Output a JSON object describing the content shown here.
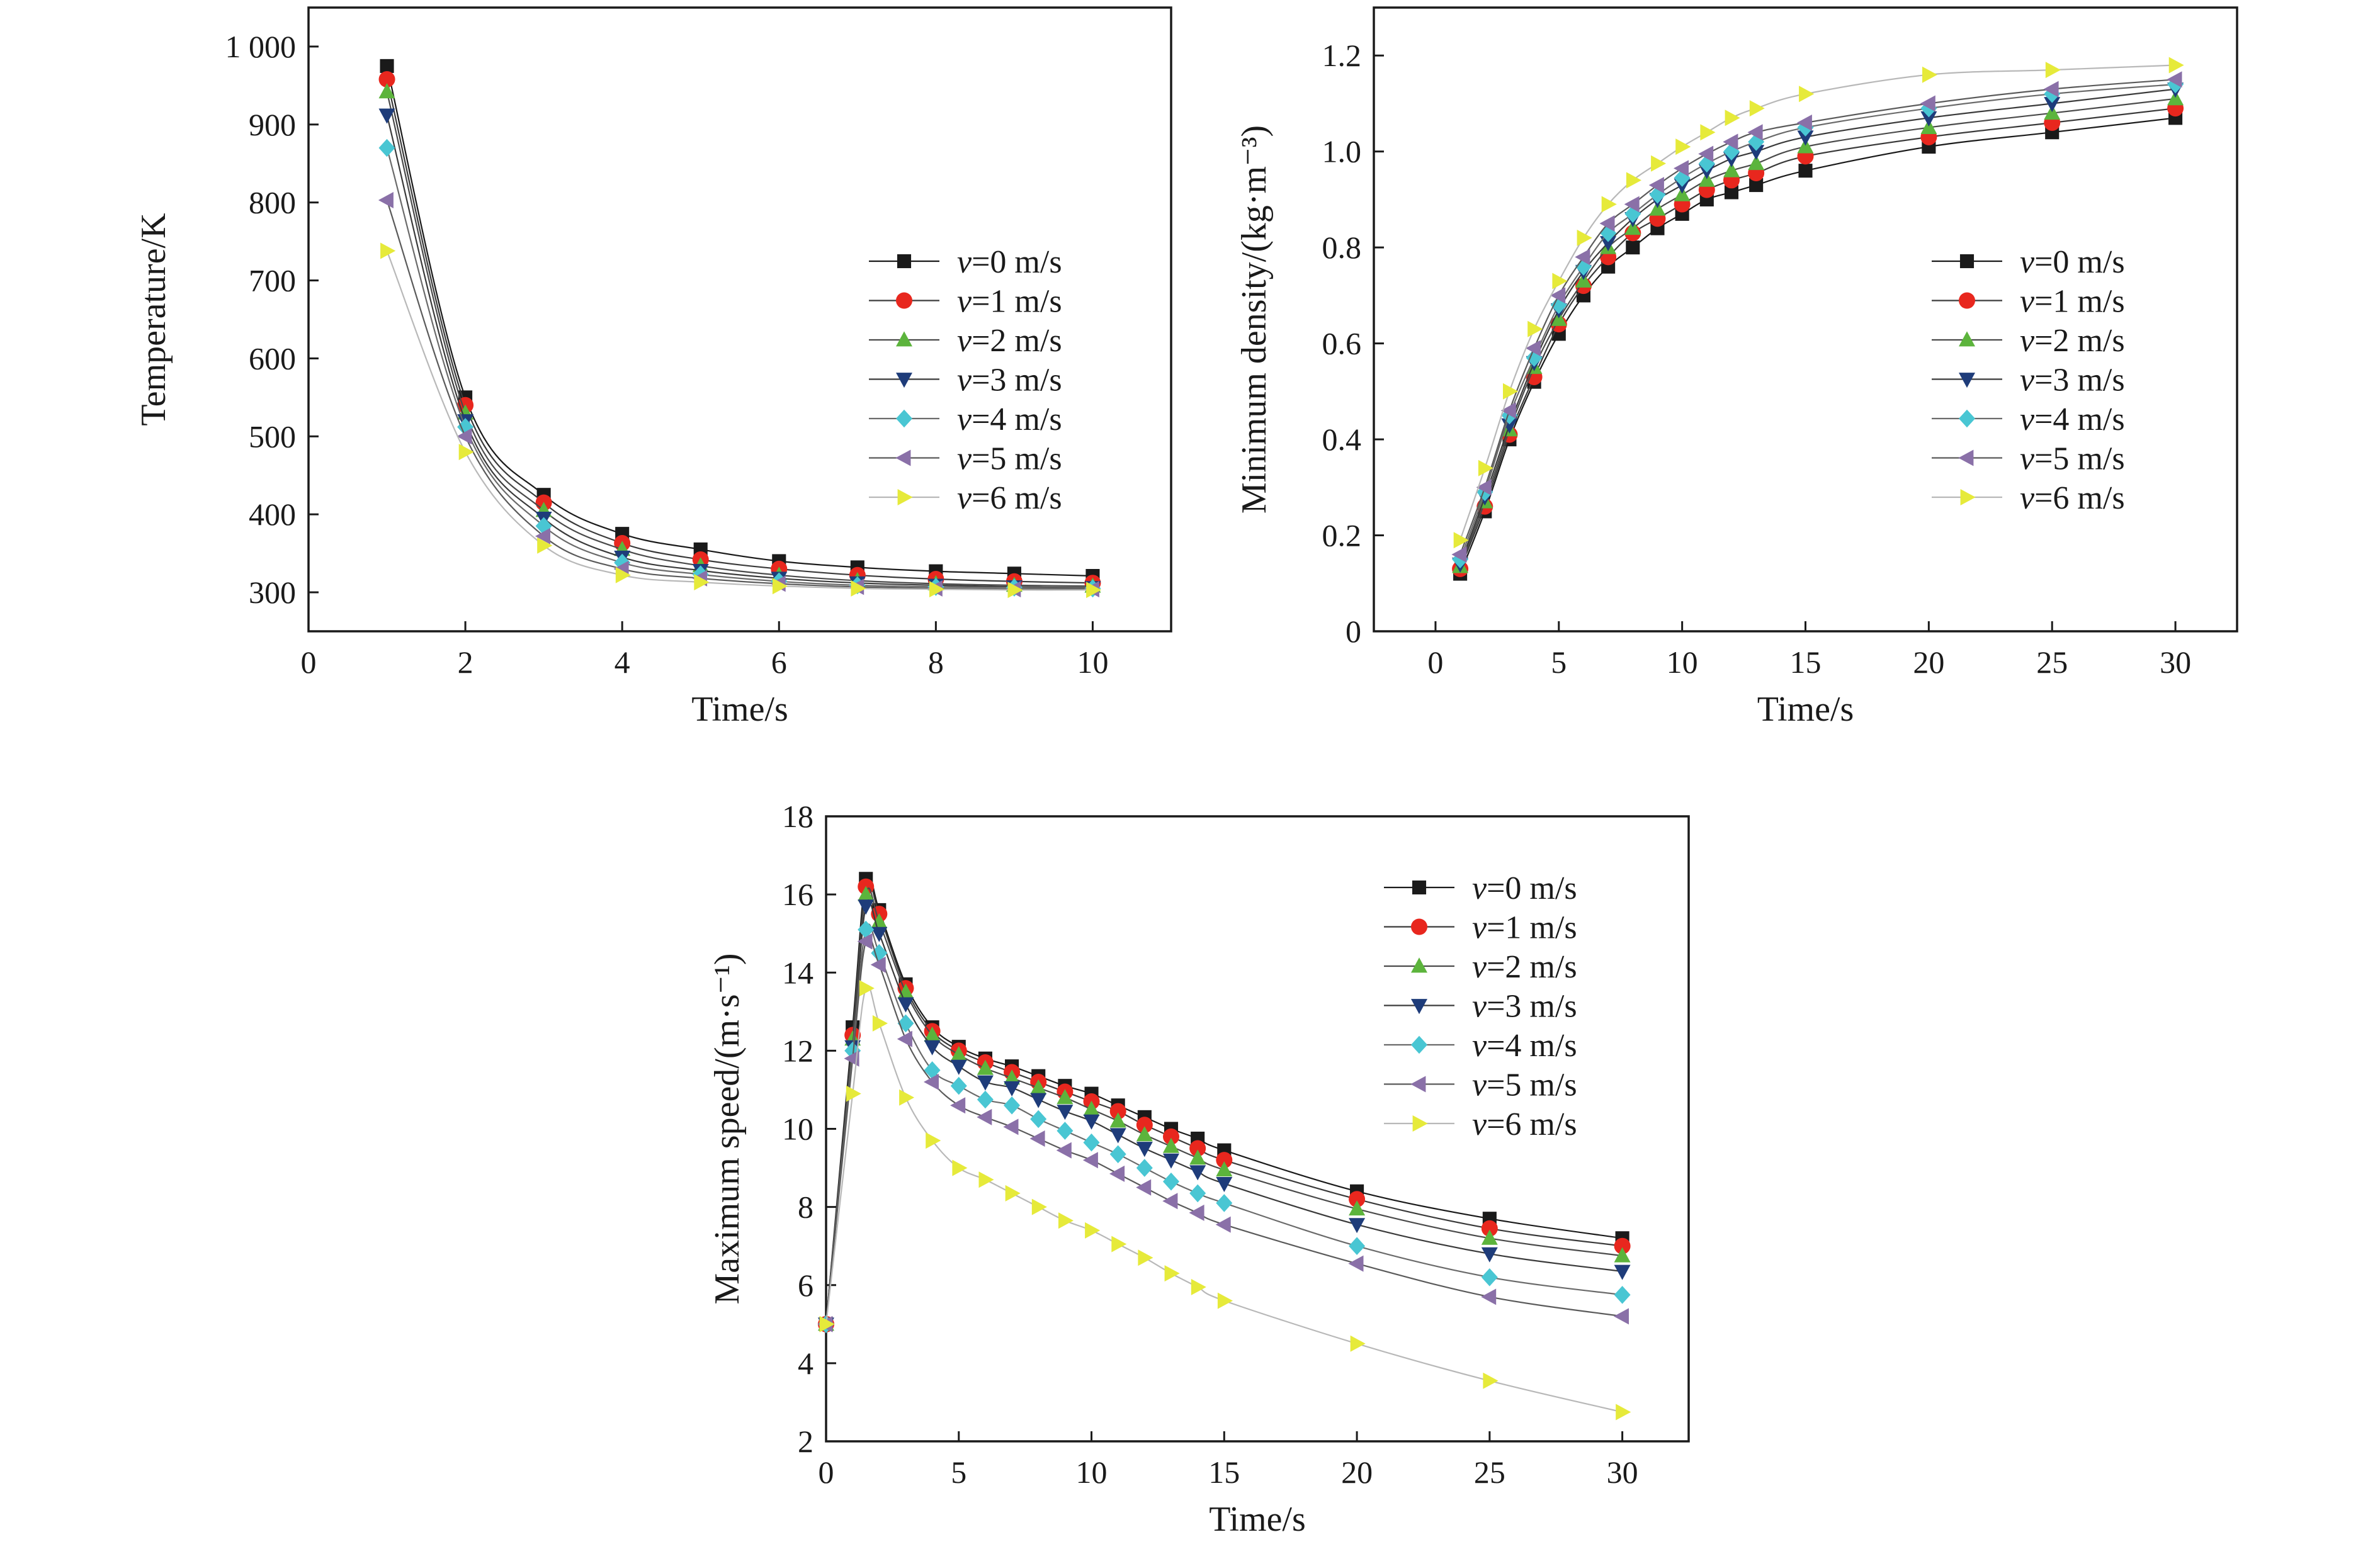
{
  "series_styles": [
    {
      "marker": "square",
      "fill": "#1a1a1a",
      "line": "#1a1a1a"
    },
    {
      "marker": "circle",
      "fill": "#e8271e",
      "line": "#3a3a3a"
    },
    {
      "marker": "triangle-up",
      "fill": "#5cb43c",
      "line": "#4a4a4a"
    },
    {
      "marker": "triangle-down",
      "fill": "#1e3c7a",
      "line": "#3a3a3a"
    },
    {
      "marker": "diamond",
      "fill": "#49c6d3",
      "line": "#6a6a6a"
    },
    {
      "marker": "triangle-left",
      "fill": "#8a70a8",
      "line": "#5a5a5a"
    },
    {
      "marker": "triangle-right",
      "fill": "#e6ea3a",
      "line": "#b8b8b8"
    }
  ],
  "legend": [
    {
      "sym": "v",
      "rest": "=0 m/s"
    },
    {
      "sym": "v",
      "rest": "=1 m/s"
    },
    {
      "sym": "v",
      "rest": "=2 m/s"
    },
    {
      "sym": "v",
      "rest": "=3 m/s"
    },
    {
      "sym": "v",
      "rest": "=4 m/s"
    },
    {
      "sym": "v",
      "rest": "=5 m/s"
    },
    {
      "sym": "v",
      "rest": "=6 m/s"
    }
  ],
  "chart_data": [
    {
      "type": "line",
      "xlabel": "Time/s",
      "ylabel": "Temperature/K",
      "xlim": [
        0,
        11
      ],
      "ylim": [
        250,
        1050
      ],
      "xticks": [
        0,
        2,
        4,
        6,
        8,
        10
      ],
      "xtick_labels": [
        "0",
        "2",
        "4",
        "6",
        "8",
        "10"
      ],
      "yticks": [
        300,
        400,
        500,
        600,
        700,
        800,
        900,
        1000
      ],
      "ytick_labels": [
        "300",
        "400",
        "500",
        "600",
        "700",
        "800",
        "900",
        "1 000"
      ],
      "legend_position": "right",
      "x": [
        1,
        2,
        3,
        4,
        5,
        6,
        7,
        8,
        9,
        10
      ],
      "series": [
        {
          "name": "v=0 m/s",
          "values": [
            975,
            550,
            425,
            375,
            355,
            340,
            332,
            327,
            324,
            321
          ]
        },
        {
          "name": "v=1 m/s",
          "values": [
            958,
            540,
            415,
            363,
            342,
            330,
            322,
            317,
            314,
            312
          ]
        },
        {
          "name": "v=2 m/s",
          "values": [
            942,
            530,
            405,
            355,
            334,
            322,
            315,
            311,
            309,
            308
          ]
        },
        {
          "name": "v=3 m/s",
          "values": [
            912,
            520,
            395,
            345,
            328,
            318,
            312,
            309,
            307,
            306
          ]
        },
        {
          "name": "v=4 m/s",
          "values": [
            870,
            512,
            385,
            338,
            323,
            314,
            309,
            307,
            306,
            305
          ]
        },
        {
          "name": "v=5 m/s",
          "values": [
            803,
            500,
            372,
            330,
            318,
            311,
            307,
            305,
            304,
            304
          ]
        },
        {
          "name": "v=6 m/s",
          "values": [
            738,
            480,
            360,
            322,
            313,
            308,
            305,
            304,
            303,
            303
          ]
        }
      ]
    },
    {
      "type": "line",
      "xlabel": "Time/s",
      "ylabel": "Minimum density/(kg·m⁻³)",
      "xlim": [
        -2.5,
        32.5
      ],
      "ylim": [
        0,
        1.3
      ],
      "xticks": [
        0,
        5,
        10,
        15,
        20,
        25,
        30
      ],
      "xtick_labels": [
        "0",
        "5",
        "10",
        "15",
        "20",
        "25",
        "30"
      ],
      "yticks": [
        0,
        0.2,
        0.4,
        0.6,
        0.8,
        1.0,
        1.2
      ],
      "ytick_labels": [
        "0",
        "0.2",
        "0.4",
        "0.6",
        "0.8",
        "1.0",
        "1.2"
      ],
      "legend_position": "right",
      "x": [
        1,
        2,
        3,
        4,
        5,
        6,
        7,
        8,
        9,
        10,
        11,
        12,
        13,
        15,
        20,
        25,
        30
      ],
      "series": [
        {
          "name": "v=0 m/s",
          "values": [
            0.12,
            0.25,
            0.4,
            0.52,
            0.62,
            0.7,
            0.76,
            0.8,
            0.84,
            0.87,
            0.9,
            0.915,
            0.93,
            0.96,
            1.01,
            1.04,
            1.07
          ]
        },
        {
          "name": "v=1 m/s",
          "values": [
            0.13,
            0.26,
            0.41,
            0.53,
            0.64,
            0.72,
            0.78,
            0.83,
            0.86,
            0.89,
            0.92,
            0.94,
            0.955,
            0.99,
            1.03,
            1.06,
            1.09
          ]
        },
        {
          "name": "v=2 m/s",
          "values": [
            0.135,
            0.27,
            0.42,
            0.55,
            0.65,
            0.73,
            0.8,
            0.84,
            0.88,
            0.91,
            0.94,
            0.96,
            0.975,
            1.01,
            1.05,
            1.08,
            1.11
          ]
        },
        {
          "name": "v=3 m/s",
          "values": [
            0.14,
            0.28,
            0.43,
            0.56,
            0.67,
            0.75,
            0.81,
            0.86,
            0.9,
            0.93,
            0.96,
            0.985,
            1.0,
            1.03,
            1.07,
            1.1,
            1.13
          ]
        },
        {
          "name": "v=4 m/s",
          "values": [
            0.15,
            0.29,
            0.45,
            0.57,
            0.68,
            0.76,
            0.83,
            0.87,
            0.91,
            0.945,
            0.975,
            1.0,
            1.02,
            1.05,
            1.09,
            1.12,
            1.14
          ]
        },
        {
          "name": "v=5 m/s",
          "values": [
            0.16,
            0.3,
            0.46,
            0.59,
            0.7,
            0.78,
            0.85,
            0.89,
            0.93,
            0.965,
            0.995,
            1.02,
            1.04,
            1.06,
            1.1,
            1.13,
            1.15
          ]
        },
        {
          "name": "v=6 m/s",
          "values": [
            0.19,
            0.34,
            0.5,
            0.63,
            0.73,
            0.82,
            0.89,
            0.94,
            0.975,
            1.01,
            1.04,
            1.07,
            1.09,
            1.12,
            1.16,
            1.17,
            1.18
          ]
        }
      ]
    },
    {
      "type": "line",
      "xlabel": "Time/s",
      "ylabel": "Maximum speed/(m·s⁻¹)",
      "xlim": [
        0,
        32.5
      ],
      "ylim": [
        2,
        18
      ],
      "xticks": [
        0,
        5,
        10,
        15,
        20,
        25,
        30
      ],
      "xtick_labels": [
        "0",
        "5",
        "10",
        "15",
        "20",
        "25",
        "30"
      ],
      "yticks": [
        2,
        4,
        6,
        8,
        10,
        12,
        14,
        16,
        18
      ],
      "ytick_labels": [
        "2",
        "4",
        "6",
        "8",
        "10",
        "12",
        "14",
        "16",
        "18"
      ],
      "legend_position": "top-right",
      "x": [
        0,
        1,
        1.5,
        2,
        3,
        4,
        5,
        6,
        7,
        8,
        9,
        10,
        11,
        12,
        13,
        14,
        15,
        20,
        25,
        30
      ],
      "series": [
        {
          "name": "v=0 m/s",
          "values": [
            5.0,
            12.6,
            16.4,
            15.6,
            13.7,
            12.6,
            12.1,
            11.8,
            11.6,
            11.35,
            11.1,
            10.9,
            10.6,
            10.3,
            10.0,
            9.75,
            9.45,
            8.4,
            7.7,
            7.2
          ]
        },
        {
          "name": "v=1 m/s",
          "values": [
            5.0,
            12.4,
            16.2,
            15.5,
            13.6,
            12.5,
            12.0,
            11.7,
            11.45,
            11.2,
            10.95,
            10.7,
            10.45,
            10.1,
            9.8,
            9.5,
            9.2,
            8.2,
            7.45,
            7.0
          ]
        },
        {
          "name": "v=2 m/s",
          "values": [
            5.0,
            12.3,
            16.0,
            15.3,
            13.5,
            12.4,
            11.9,
            11.55,
            11.3,
            11.05,
            10.8,
            10.5,
            10.2,
            9.85,
            9.55,
            9.25,
            8.95,
            7.95,
            7.2,
            6.75
          ]
        },
        {
          "name": "v=3 m/s",
          "values": [
            5.0,
            12.1,
            15.7,
            15.0,
            13.2,
            12.1,
            11.6,
            11.2,
            11.05,
            10.75,
            10.45,
            10.2,
            9.85,
            9.5,
            9.2,
            8.9,
            8.6,
            7.55,
            6.8,
            6.35
          ]
        },
        {
          "name": "v=4 m/s",
          "values": [
            5.0,
            12.0,
            15.1,
            14.5,
            12.7,
            11.5,
            11.1,
            10.75,
            10.6,
            10.25,
            9.95,
            9.65,
            9.35,
            9.0,
            8.65,
            8.35,
            8.1,
            7.0,
            6.2,
            5.75
          ]
        },
        {
          "name": "v=5 m/s",
          "values": [
            5.0,
            11.8,
            14.8,
            14.2,
            12.3,
            11.2,
            10.6,
            10.3,
            10.05,
            9.75,
            9.45,
            9.2,
            8.85,
            8.5,
            8.15,
            7.85,
            7.55,
            6.55,
            5.7,
            5.2
          ]
        },
        {
          "name": "v=6 m/s",
          "values": [
            5.0,
            10.9,
            13.6,
            12.7,
            10.8,
            9.7,
            9.0,
            8.7,
            8.35,
            8.0,
            7.65,
            7.4,
            7.05,
            6.7,
            6.3,
            5.95,
            5.6,
            4.5,
            3.55,
            2.75
          ]
        }
      ]
    }
  ]
}
